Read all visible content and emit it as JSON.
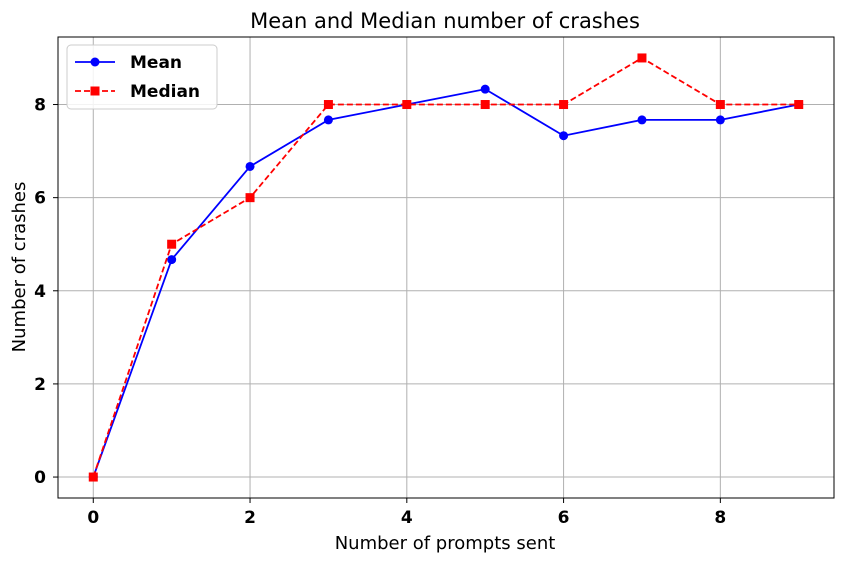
{
  "chart_data": {
    "type": "line",
    "title": "Mean and Median number of crashes",
    "xlabel": "Number of prompts sent",
    "ylabel": "Number of crashes",
    "x": [
      0,
      1,
      2,
      3,
      4,
      5,
      6,
      7,
      8,
      9
    ],
    "xlim": [
      -0.45,
      9.45
    ],
    "ylim": [
      -0.45,
      9.45
    ],
    "xticks": [
      0,
      2,
      4,
      6,
      8
    ],
    "yticks": [
      0,
      2,
      4,
      6,
      8
    ],
    "xtick_labels": [
      "0",
      "2",
      "4",
      "6",
      "8"
    ],
    "ytick_labels": [
      "0",
      "2",
      "4",
      "6",
      "8"
    ],
    "grid": true,
    "legend_position": "top-left",
    "series": [
      {
        "name": "Mean",
        "values": [
          0,
          4.67,
          6.67,
          7.67,
          8.0,
          8.33,
          7.33,
          7.67,
          7.67,
          8.0
        ],
        "color": "#0000ff",
        "line_style": "solid",
        "marker": "circle"
      },
      {
        "name": "Median",
        "values": [
          0,
          5,
          6,
          8,
          8,
          8,
          8,
          9,
          8,
          8
        ],
        "color": "#ff0000",
        "line_style": "dashed",
        "marker": "square"
      }
    ]
  }
}
